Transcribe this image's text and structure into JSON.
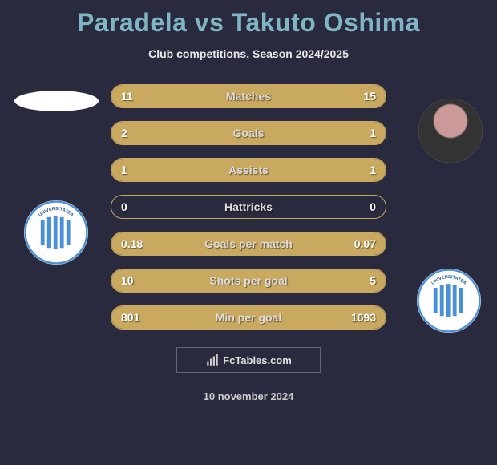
{
  "title": "Paradela vs Takuto Oshima",
  "subtitle": "Club competitions, Season 2024/2025",
  "date": "10 november 2024",
  "watermark": "FcTables.com",
  "colors": {
    "bar_fill": "#c9a85f",
    "bar_border": "#c9a85f",
    "background": "#2a2a3e",
    "title_color": "#7fb5c4"
  },
  "club_badge": {
    "text_top": "UNIVERSITATEA",
    "text_bottom": "CRAIOVA",
    "stripe_color": "#4a90d9",
    "bg_color": "#ffffff"
  },
  "rows": [
    {
      "label": "Matches",
      "left": "11",
      "right": "15",
      "fill_left_pct": 42,
      "fill_right_pct": 58
    },
    {
      "label": "Goals",
      "left": "2",
      "right": "1",
      "fill_left_pct": 66,
      "fill_right_pct": 34
    },
    {
      "label": "Assists",
      "left": "1",
      "right": "1",
      "fill_left_pct": 50,
      "fill_right_pct": 50
    },
    {
      "label": "Hattricks",
      "left": "0",
      "right": "0",
      "fill_left_pct": 0,
      "fill_right_pct": 0
    },
    {
      "label": "Goals per match",
      "left": "0.18",
      "right": "0.07",
      "fill_left_pct": 72,
      "fill_right_pct": 28
    },
    {
      "label": "Shots per goal",
      "left": "10",
      "right": "5",
      "fill_left_pct": 66,
      "fill_right_pct": 34
    },
    {
      "label": "Min per goal",
      "left": "801",
      "right": "1693",
      "fill_left_pct": 32,
      "fill_right_pct": 68
    }
  ]
}
